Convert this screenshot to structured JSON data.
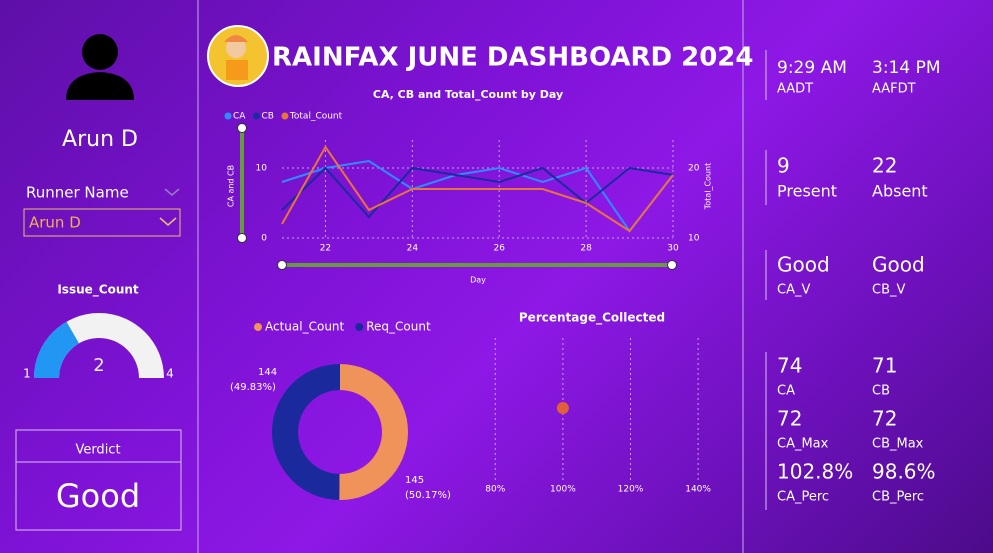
{
  "profile": {
    "name": "Arun D"
  },
  "filter": {
    "label": "Runner Name",
    "selected": "Arun D"
  },
  "verdict": {
    "label": "Verdict",
    "value": "Good"
  },
  "header": {
    "title": "RAINFAX JUNE DASHBOARD 2024"
  },
  "kpi_groups": [
    [
      {
        "value": "9:29 AM",
        "label": "AADT"
      },
      {
        "value": "3:14 PM",
        "label": "AAFDT"
      }
    ],
    [
      {
        "value": "9",
        "label": "Present"
      },
      {
        "value": "22",
        "label": "Absent"
      }
    ],
    [
      {
        "value": "Good",
        "label": "CA_V"
      },
      {
        "value": "Good",
        "label": "CB_V"
      }
    ],
    [
      {
        "value": "74",
        "label": "CA"
      },
      {
        "value": "71",
        "label": "CB"
      },
      {
        "value": "72",
        "label": "CA_Max"
      },
      {
        "value": "72",
        "label": "CB_Max"
      },
      {
        "value": "102.8%",
        "label": "CA_Perc"
      },
      {
        "value": "98.6%",
        "label": "CB_Perc"
      }
    ]
  ],
  "chart_data": [
    {
      "type": "gauge",
      "title": "Issue_Count",
      "value": 2,
      "min": 1,
      "max": 4,
      "color": "#2196f3",
      "track_color": "#f2f2f2"
    },
    {
      "type": "line",
      "title": "CA, CB and Total_Count by Day",
      "x_label": "Day",
      "y_label": "CA and CB",
      "y2_label": "Total_Count",
      "x": [
        21,
        22,
        23,
        24,
        25,
        26,
        27,
        28,
        29,
        30
      ],
      "xlim": [
        21,
        30
      ],
      "xticks": [
        22,
        24,
        26,
        28,
        30
      ],
      "ylim": [
        0,
        14
      ],
      "yticks": [
        0,
        10
      ],
      "y2lim": [
        10,
        24
      ],
      "y2ticks": [
        10,
        20
      ],
      "grid": true,
      "series": [
        {
          "name": "CA",
          "color": "#2f8cff",
          "values": [
            8,
            10,
            11,
            7,
            9,
            10,
            8,
            10,
            1,
            9
          ]
        },
        {
          "name": "CB",
          "color": "#1a2aa0",
          "values": [
            4,
            10,
            3,
            10,
            9,
            8,
            10,
            5,
            10,
            9
          ]
        },
        {
          "name": "Total_Count",
          "color": "#e8743b",
          "axis": "y2",
          "values": [
            12,
            23,
            14,
            17,
            17,
            17,
            17,
            15,
            11,
            19
          ]
        }
      ]
    },
    {
      "type": "donut",
      "categories": [
        "Actual_Count",
        "Req_Count"
      ],
      "values": [
        145,
        144
      ],
      "percent_labels": [
        "(50.17%)",
        "(49.83%)"
      ],
      "colors": [
        "#f0935a",
        "#1a2a9c"
      ]
    },
    {
      "type": "scatter",
      "title": "Percentage_Collected",
      "x": [
        100
      ],
      "xlim": [
        74,
        145
      ],
      "xticks": [
        {
          "value": 80,
          "label": "80%"
        },
        {
          "value": 100,
          "label": "100%"
        },
        {
          "value": 120,
          "label": "120%"
        },
        {
          "value": 140,
          "label": "140%"
        }
      ],
      "color": "#e0603a",
      "grid": true
    }
  ]
}
